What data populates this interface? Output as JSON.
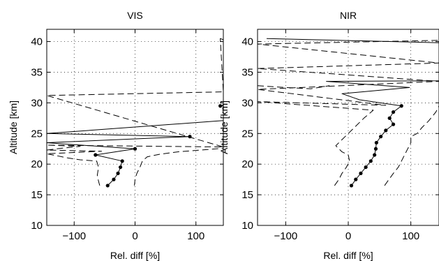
{
  "colors": {
    "line": "#000000",
    "background": "#ffffff",
    "grid": "#000000"
  },
  "chart_data": [
    {
      "type": "line",
      "title": "VIS",
      "xlabel": "Rel. diff [%]",
      "ylabel": "Altitude [km]",
      "xlim": [
        -145,
        145
      ],
      "ylim": [
        10,
        42
      ],
      "xticks": [
        -100,
        0,
        100
      ],
      "yticks": [
        10,
        15,
        20,
        25,
        30,
        35,
        40
      ],
      "grid": true,
      "series": [
        {
          "style": "solid-markers",
          "points": [
            [
              -45,
              16.5
            ],
            [
              -35,
              17.5
            ],
            [
              -28,
              18.5
            ],
            [
              -24,
              19.5
            ],
            [
              -21,
              20.5
            ],
            [
              -65,
              21.5
            ],
            [
              0,
              22.5
            ],
            [
              -145,
              23.5
            ],
            [
              90,
              24.5
            ],
            [
              -145,
              25
            ],
            [
              145,
              27.1
            ],
            [
              145,
              29.5
            ],
            [
              140,
              29.5
            ]
          ]
        },
        {
          "style": "dashed",
          "points": [
            [
              -58,
              16.5
            ],
            [
              -60,
              17.2
            ],
            [
              -62,
              18.2
            ],
            [
              -60,
              19.5
            ],
            [
              -63,
              20.5
            ],
            [
              -90,
              20.7
            ],
            [
              -110,
              21
            ],
            [
              -130,
              21.4
            ],
            [
              -145,
              21.7
            ],
            [
              -100,
              21.9
            ],
            [
              -55,
              22.1
            ],
            [
              -145,
              22.3
            ],
            [
              -120,
              22.6
            ],
            [
              -90,
              22.9
            ],
            [
              -145,
              23.1
            ],
            [
              145,
              22.8
            ],
            [
              -145,
              31.2
            ],
            [
              145,
              31.8
            ],
            [
              140,
              40.5
            ],
            [
              145,
              40.3
            ]
          ]
        },
        {
          "style": "dashed",
          "points": [
            [
              -1,
              16.5
            ],
            [
              0,
              17.5
            ],
            [
              3,
              18.5
            ],
            [
              8,
              19.5
            ],
            [
              12,
              20.5
            ],
            [
              20,
              21.2
            ],
            [
              40,
              21.6
            ],
            [
              70,
              22
            ],
            [
              95,
              22.2
            ],
            [
              145,
              22.6
            ]
          ]
        }
      ]
    },
    {
      "type": "line",
      "title": "NIR",
      "xlabel": "Rel. diff [%]",
      "ylabel": "Altitude [km]",
      "xlim": [
        -145,
        145
      ],
      "ylim": [
        10,
        42
      ],
      "xticks": [
        -100,
        0,
        100
      ],
      "yticks": [
        10,
        15,
        20,
        25,
        30,
        35,
        40
      ],
      "grid": true,
      "series": [
        {
          "style": "solid-markers",
          "points": [
            [
              5,
              16.5
            ],
            [
              12,
              17.5
            ],
            [
              20,
              18.5
            ],
            [
              28,
              19.5
            ],
            [
              36,
              20.5
            ],
            [
              42,
              21.5
            ],
            [
              44,
              22.5
            ],
            [
              45,
              23.5
            ],
            [
              52,
              24.5
            ],
            [
              60,
              25.5
            ],
            [
              72,
              26.5
            ],
            [
              66,
              27.5
            ],
            [
              72,
              28.5
            ],
            [
              85,
              29.5
            ],
            [
              18,
              30.5
            ],
            [
              -10,
              31.5
            ],
            [
              98,
              32.5
            ],
            [
              -35,
              33.5
            ],
            [
              145,
              33.6
            ],
            [
              145,
              39.8
            ],
            [
              -130,
              40.5
            ],
            [
              145,
              39.8
            ]
          ]
        },
        {
          "style": "dashed",
          "points": [
            [
              -22,
              16.5
            ],
            [
              -15,
              17.5
            ],
            [
              -10,
              18.5
            ],
            [
              -3,
              19.5
            ],
            [
              2,
              20.5
            ],
            [
              0,
              21.5
            ],
            [
              -10,
              22
            ],
            [
              -20,
              23
            ],
            [
              -10,
              24
            ],
            [
              0,
              25
            ],
            [
              10,
              26
            ],
            [
              25,
              27.5
            ],
            [
              40,
              28.8
            ],
            [
              -145,
              30.2
            ],
            [
              60,
              29.6
            ],
            [
              -145,
              32.2
            ],
            [
              145,
              33.5
            ],
            [
              -145,
              35.6
            ],
            [
              145,
              36.5
            ],
            [
              -145,
              39.6
            ],
            [
              145,
              40.2
            ]
          ]
        },
        {
          "style": "dashed",
          "points": [
            [
              58,
              16.5
            ],
            [
              65,
              17.5
            ],
            [
              72,
              18.5
            ],
            [
              80,
              19.5
            ],
            [
              85,
              20.5
            ],
            [
              90,
              21.5
            ],
            [
              95,
              22.5
            ],
            [
              100,
              23.5
            ],
            [
              100,
              24.5
            ],
            [
              110,
              25
            ],
            [
              118,
              26
            ],
            [
              128,
              27
            ],
            [
              140,
              28.5
            ],
            [
              145,
              29.5
            ]
          ]
        },
        {
          "style": "dashed",
          "points": [
            [
              -145,
              32.8
            ],
            [
              -100,
              32.5
            ],
            [
              -60,
              32.3
            ],
            [
              -30,
              32.8
            ]
          ]
        }
      ]
    }
  ]
}
